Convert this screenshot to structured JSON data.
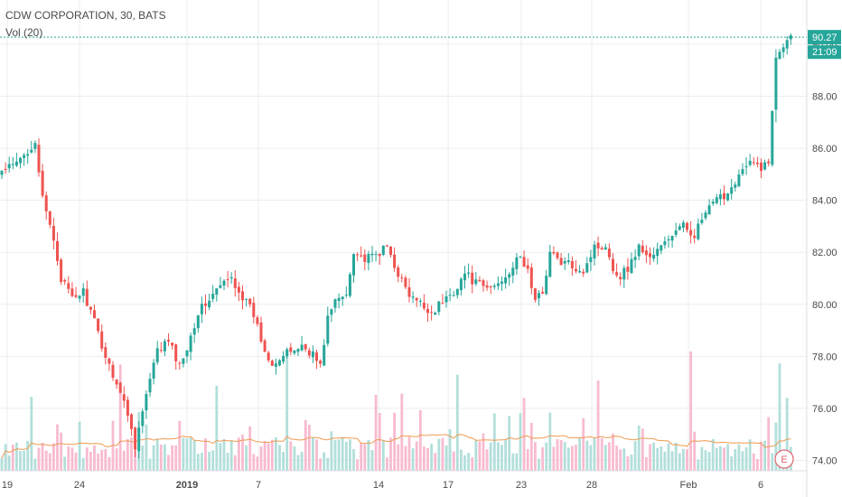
{
  "legend": {
    "title": "CDW CORPORATION, 30, BATS",
    "volume_label": "Vol (20)"
  },
  "price_badge": {
    "price": "90.27",
    "countdown": "21:09",
    "color": "#26a69a"
  },
  "earnings_marker": {
    "letter": "E",
    "color": "#e0656d"
  },
  "colors": {
    "up": "#26a69a",
    "down": "#ef5350",
    "vol_up": "#b2dfdb",
    "vol_down": "#f8bbd0",
    "ma": "#ef9a50",
    "grid": "#ecedf1"
  },
  "chart_data": {
    "type": "candlestick",
    "title": "CDW CORPORATION, 30, BATS",
    "y_ticks": [
      "74.00",
      "76.00",
      "78.00",
      "80.00",
      "82.00",
      "84.00",
      "86.00",
      "88.00",
      "90.00"
    ],
    "ylim": [
      73.6,
      91.7
    ],
    "x_ticks": [
      "19",
      "24",
      "2019",
      "7",
      "14",
      "17",
      "23",
      "28",
      "Feb",
      "6"
    ],
    "x_tick_bold": "2019",
    "last_price": 90.27,
    "anchors": [
      [
        0,
        85.1
      ],
      [
        4,
        85.4
      ],
      [
        7,
        85.9
      ],
      [
        9,
        86.3
      ],
      [
        11,
        84.0
      ],
      [
        14,
        82.5
      ],
      [
        16,
        81.0
      ],
      [
        19,
        80.2
      ],
      [
        22,
        80.5
      ],
      [
        25,
        79.3
      ],
      [
        28,
        78.0
      ],
      [
        31,
        77.0
      ],
      [
        34,
        75.8
      ],
      [
        36,
        74.6
      ],
      [
        39,
        76.5
      ],
      [
        42,
        78.2
      ],
      [
        45,
        78.6
      ],
      [
        48,
        77.6
      ],
      [
        51,
        78.8
      ],
      [
        53,
        79.7
      ],
      [
        56,
        80.2
      ],
      [
        59,
        80.7
      ],
      [
        62,
        81.0
      ],
      [
        65,
        80.3
      ],
      [
        68,
        79.6
      ],
      [
        71,
        78.2
      ],
      [
        73,
        77.8
      ],
      [
        75,
        77.9
      ],
      [
        78,
        78.2
      ],
      [
        81,
        78.4
      ],
      [
        84,
        78.1
      ],
      [
        86,
        77.6
      ],
      [
        88,
        79.5
      ],
      [
        90,
        80.1
      ],
      [
        93,
        80.4
      ],
      [
        95,
        82.1
      ],
      [
        98,
        81.7
      ],
      [
        101,
        81.9
      ],
      [
        104,
        82.2
      ],
      [
        107,
        81.2
      ],
      [
        110,
        80.3
      ],
      [
        113,
        80.0
      ],
      [
        116,
        79.7
      ],
      [
        119,
        80.1
      ],
      [
        122,
        80.5
      ],
      [
        125,
        81.2
      ],
      [
        128,
        80.8
      ],
      [
        131,
        80.6
      ],
      [
        134,
        80.8
      ],
      [
        137,
        81.3
      ],
      [
        140,
        81.8
      ],
      [
        142,
        81.3
      ],
      [
        144,
        80.1
      ],
      [
        146,
        80.5
      ],
      [
        148,
        82.0
      ],
      [
        151,
        81.6
      ],
      [
        154,
        81.5
      ],
      [
        157,
        81.3
      ],
      [
        160,
        82.2
      ],
      [
        163,
        82.3
      ],
      [
        166,
        81.0
      ],
      [
        169,
        81.4
      ],
      [
        172,
        82.2
      ],
      [
        175,
        81.8
      ],
      [
        178,
        82.2
      ],
      [
        181,
        82.7
      ],
      [
        184,
        83.0
      ],
      [
        187,
        82.7
      ],
      [
        190,
        83.5
      ],
      [
        193,
        84.0
      ],
      [
        196,
        84.3
      ],
      [
        199,
        85.0
      ],
      [
        202,
        85.4
      ],
      [
        205,
        85.3
      ],
      [
        207,
        85.4
      ],
      [
        209,
        89.6
      ],
      [
        212,
        90.27
      ]
    ],
    "gap_index": 209,
    "gap_low": 87.0,
    "volume_ylim": [
      0,
      180000
    ],
    "volume_spike_indices": [
      8,
      32,
      58,
      77,
      101,
      108,
      123,
      141,
      161,
      186,
      210,
      212
    ]
  }
}
